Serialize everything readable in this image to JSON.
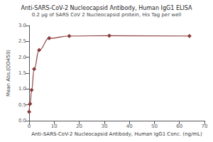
{
  "chart_data": {
    "type": "line",
    "title": "Anti-SARS-CoV-2 Nucleocapsid Antibody, Human IgG1 ELISA",
    "subtitle": "0.2 μg of SARS CoV 2 Nucleocapsid protein, His Tag per well",
    "xlabel": "Anti-SARS-CoV-2 Nucleocapsid Antibody, Human IgG1 Conc. (ng/mL)",
    "ylabel": "Mean Abs.(OD450)",
    "x": [
      0.0,
      0.4,
      1.0,
      2.0,
      4.0,
      8.0,
      16.0,
      32.0,
      64.0
    ],
    "values": [
      0.28,
      0.53,
      0.97,
      1.63,
      2.23,
      2.6,
      2.67,
      2.68,
      2.67
    ],
    "color": "#8B3A3A",
    "marker": "diamond",
    "xlim": [
      0,
      70
    ],
    "ylim": [
      0.0,
      3.0
    ],
    "xticks": [
      0,
      10,
      20,
      30,
      40,
      50,
      60,
      70
    ],
    "yticks": [
      {
        "value": 0,
        "label": "0.0"
      },
      0.5,
      {
        "value": 1,
        "label": "1.0"
      },
      1.5,
      {
        "value": 2,
        "label": "2.0"
      },
      2.5,
      {
        "value": 3,
        "label": "3.0"
      }
    ],
    "grid": false
  }
}
